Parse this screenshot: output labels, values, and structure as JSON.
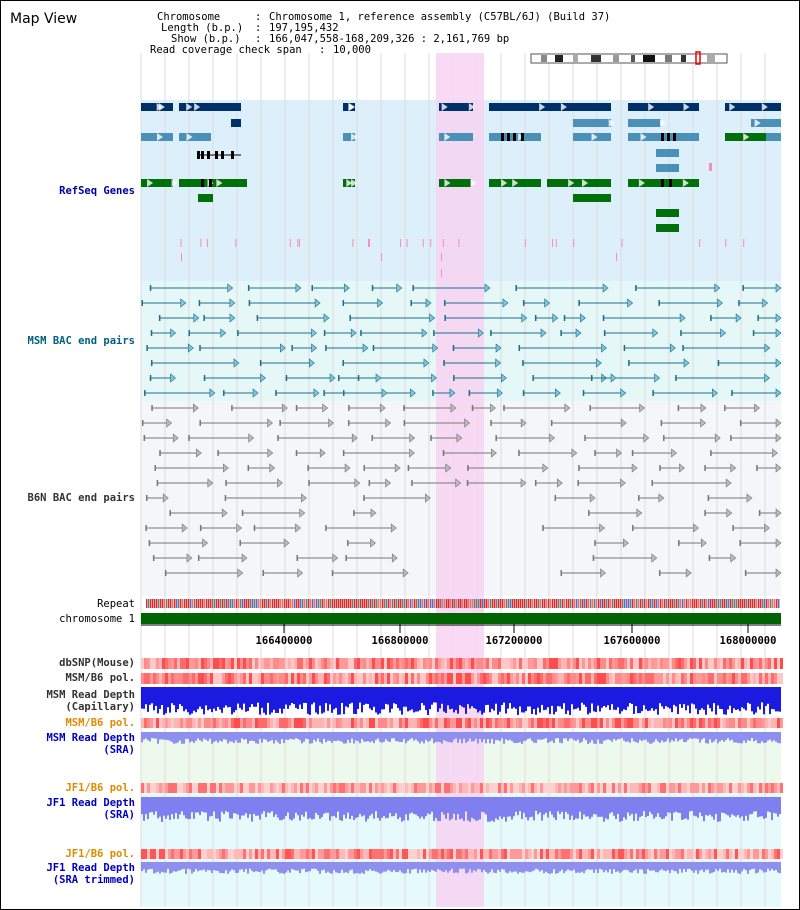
{
  "title": "Map View",
  "info": {
    "chromosome_label": "Chromosome",
    "chromosome_value": "Chromosome 1, reference assembly (C57BL/6J) (Build 37)",
    "length_label": "Length (b.p.)",
    "length_value": "197,195,432",
    "show_label": "Show (b.p.)",
    "show_value": "166,047,558-168,209,326 : 2,161,769 bp",
    "coverage_label": "Read coverage check span",
    "coverage_value": "10,000"
  },
  "tracks": {
    "refseq": "RefSeq Genes",
    "msm_bac": "MSM BAC end pairs",
    "b6n_bac": "B6N BAC end pairs",
    "repeat": "Repeat",
    "chromosome": "chromosome 1",
    "dbsnp": "dbSNP(Mouse)",
    "msm_b6_pol_1": "MSM/B6 pol.",
    "msm_read_depth_cap": "MSM Read Depth\n(Capillary)",
    "msm_b6_pol_2": "MSM/B6 pol.",
    "msm_read_depth_sra": "MSM Read Depth\n(SRA)",
    "jf1_b6_pol_1": "JF1/B6 pol.",
    "jf1_read_depth_sra": "JF1 Read Depth\n(SRA)",
    "jf1_b6_pol_2": "JF1/B6 pol.",
    "jf1_read_depth_trim": "JF1 Read Depth\n(SRA trimmed)"
  },
  "axis": {
    "ticks": [
      "166400000",
      "166800000",
      "167200000",
      "167600000",
      "168000000"
    ]
  },
  "colors": {
    "refseq_bg": "#dceffa",
    "msm_bg": "#e6f7f7",
    "b6n_bg": "#f4f6fa",
    "highlight": "#f7d3f2",
    "gene_navy": "#00306a",
    "gene_blue": "#4a90b8",
    "gene_green": "#00700a",
    "msm_line": "#1d6f8c",
    "b6n_line": "#777777",
    "chromosome_bar": "#006400"
  }
}
